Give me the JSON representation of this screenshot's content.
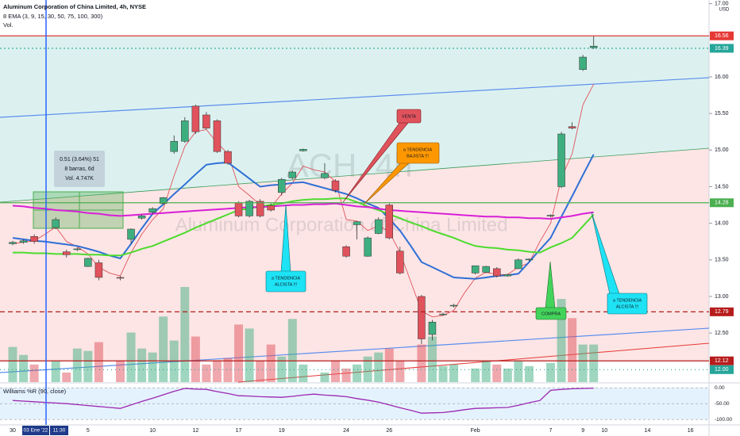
{
  "chart_data": {
    "type": "candlestick",
    "title": "Aluminum Corporation of China Limited, 4h, NYSE",
    "indicator_label": "8 EMA (3, 9, 15, 30, 50, 75, 100, 300)",
    "volume_label": "Vol.",
    "currency": "USD",
    "watermark": [
      "ACH, 4h",
      "Aluminum Corporation of China Limited"
    ],
    "up_color": "#3fae7f",
    "down_color": "#e0525c",
    "categories": [
      "30",
      null,
      null,
      null,
      null,
      null,
      null,
      "5",
      null,
      null,
      null,
      null,
      null,
      "10",
      null,
      null,
      null,
      "12",
      null,
      null,
      null,
      "17",
      null,
      null,
      null,
      "19",
      null,
      null,
      null,
      null,
      null,
      "24",
      null,
      null,
      null,
      "26",
      null,
      null,
      null,
      null,
      null,
      null,
      null,
      "Feb",
      null,
      null,
      null,
      null,
      null,
      null,
      "7",
      null,
      null,
      "9",
      null,
      "10",
      null,
      null,
      null,
      "14",
      null,
      null,
      null,
      "16",
      null
    ],
    "open": [
      13.72,
      13.74,
      13.82,
      null,
      13.94,
      13.61,
      13.64,
      13.41,
      13.46,
      null,
      13.26,
      13.78,
      14.07,
      14.15,
      14.27,
      14.98,
      15.12,
      15.6,
      15.48,
      15.4,
      14.98,
      14.28,
      14.1,
      14.3,
      14.24,
      14.42,
      14.62,
      14.99,
      null,
      14.62,
      14.58,
      13.68,
      13.98,
      13.55,
      13.86,
      14.25,
      13.62,
      null,
      13.0,
      12.48,
      12.75,
      12.87,
      null,
      13.32,
      13.33,
      13.38,
      13.28,
      13.38,
      13.5,
      null,
      14.1,
      14.5,
      15.32,
      16.1,
      16.4,
      null,
      null,
      null,
      null,
      null,
      null,
      null,
      null,
      null,
      null
    ],
    "high": [
      13.76,
      13.78,
      13.85,
      null,
      14.08,
      13.64,
      13.67,
      13.53,
      13.5,
      null,
      13.28,
      13.93,
      14.12,
      14.22,
      14.36,
      15.2,
      15.45,
      15.62,
      15.52,
      15.42,
      15.0,
      14.3,
      14.32,
      14.33,
      14.27,
      14.62,
      14.72,
      15.02,
      null,
      14.82,
      14.6,
      13.7,
      14.03,
      13.82,
      14.08,
      14.27,
      13.68,
      null,
      13.02,
      12.68,
      12.78,
      12.9,
      null,
      13.42,
      13.42,
      13.4,
      13.31,
      13.52,
      13.52,
      null,
      14.12,
      15.25,
      15.38,
      16.3,
      16.56,
      null,
      null,
      null,
      null,
      null,
      null,
      null,
      null,
      null,
      null
    ],
    "low": [
      13.7,
      13.72,
      13.72,
      null,
      13.92,
      13.53,
      13.62,
      13.4,
      13.22,
      null,
      13.22,
      13.72,
      14.05,
      14.12,
      14.25,
      14.95,
      15.1,
      15.22,
      15.28,
      14.96,
      14.8,
      14.08,
      14.08,
      14.08,
      14.16,
      14.38,
      14.6,
      14.98,
      null,
      14.6,
      14.42,
      13.53,
      13.78,
      13.54,
      13.85,
      13.78,
      13.3,
      null,
      12.35,
      12.4,
      12.74,
      12.85,
      null,
      13.3,
      13.32,
      13.26,
      13.27,
      13.37,
      13.48,
      null,
      14.08,
      14.48,
      15.28,
      16.08,
      16.38,
      null,
      null,
      null,
      null,
      null,
      null,
      null,
      null,
      null,
      null
    ],
    "close": [
      13.74,
      13.76,
      13.75,
      null,
      14.05,
      13.57,
      13.65,
      13.52,
      13.26,
      null,
      13.25,
      13.92,
      14.1,
      14.2,
      14.35,
      15.12,
      15.4,
      15.25,
      15.3,
      14.98,
      14.82,
      14.1,
      14.3,
      14.1,
      14.18,
      14.6,
      14.7,
      15.01,
      null,
      14.68,
      14.45,
      13.55,
      14.02,
      13.8,
      14.05,
      13.8,
      13.32,
      null,
      12.42,
      12.65,
      12.76,
      12.88,
      null,
      13.42,
      13.41,
      13.28,
      13.3,
      13.5,
      13.51,
      null,
      14.11,
      15.22,
      15.3,
      16.27,
      16.42,
      null,
      null,
      null,
      null,
      null,
      null,
      null,
      null,
      null,
      null
    ],
    "volume": [
      4.4,
      3.4,
      2.2,
      null,
      2.7,
      1.2,
      4.2,
      3.9,
      5.0,
      null,
      2.7,
      6.2,
      4.2,
      3.7,
      8.2,
      5.2,
      11.9,
      5.7,
      2.2,
      2.7,
      3.0,
      7.2,
      6.7,
      2.7,
      4.7,
      3.2,
      7.9,
      2.2,
      null,
      1.2,
      2.7,
      1.7,
      2.2,
      3.2,
      3.7,
      4.2,
      2.7,
      null,
      4.7,
      5.7,
      2.0,
      2.2,
      null,
      1.7,
      2.7,
      2.2,
      1.7,
      2.7,
      2.0,
      null,
      2.4,
      10.4,
      8.0,
      4.7,
      4.7,
      null,
      null,
      null,
      null,
      null,
      null,
      null,
      null,
      null,
      null
    ],
    "ema_lines": [
      {
        "color": "#e0525c",
        "values": [
          13.72,
          13.74,
          13.76,
          13.85,
          13.95,
          13.75,
          13.68,
          13.58,
          13.4,
          13.32,
          13.28,
          13.6,
          13.85,
          14.05,
          14.2,
          14.65,
          15.05,
          15.25,
          15.28,
          15.1,
          14.95,
          14.5,
          14.38,
          14.25,
          14.22,
          14.4,
          14.55,
          14.78,
          14.73,
          14.7,
          14.57,
          14.05,
          14.03,
          13.9,
          13.97,
          13.88,
          13.6,
          13.2,
          12.8,
          12.72,
          12.74,
          12.81,
          13.05,
          13.25,
          13.33,
          13.3,
          13.3,
          13.4,
          13.46,
          13.75,
          14.0,
          14.62,
          14.95,
          15.62,
          15.9,
          null,
          null,
          null,
          null,
          null,
          null,
          null,
          null,
          null,
          null
        ]
      },
      {
        "color": "#2f6fd6",
        "values": [
          13.8,
          13.78,
          13.76,
          13.75,
          13.73,
          13.71,
          13.69,
          13.65,
          13.61,
          13.56,
          13.52,
          13.72,
          13.93,
          14.13,
          14.26,
          14.4,
          14.53,
          14.67,
          14.8,
          14.82,
          14.83,
          14.72,
          14.61,
          14.5,
          14.52,
          14.53,
          14.55,
          14.56,
          14.52,
          14.48,
          14.44,
          14.4,
          14.34,
          14.27,
          14.21,
          14.06,
          13.9,
          13.69,
          13.47,
          13.4,
          13.33,
          13.26,
          13.25,
          13.24,
          13.26,
          13.28,
          13.29,
          13.31,
          13.47,
          13.64,
          13.8,
          14.09,
          14.37,
          14.66,
          14.94,
          null,
          null,
          null,
          null,
          null,
          null,
          null,
          null,
          null,
          null
        ]
      },
      {
        "color": "#4cdb2e",
        "values": [
          13.6,
          13.6,
          13.59,
          13.59,
          13.58,
          13.58,
          13.58,
          13.57,
          13.57,
          13.56,
          13.56,
          13.6,
          13.65,
          13.69,
          13.75,
          13.81,
          13.87,
          13.94,
          14.0,
          14.06,
          14.12,
          14.18,
          14.2,
          14.23,
          14.25,
          14.27,
          14.3,
          14.32,
          14.33,
          14.33,
          14.34,
          14.34,
          14.29,
          14.23,
          14.18,
          14.12,
          14.07,
          14.01,
          13.96,
          13.9,
          13.85,
          13.8,
          13.74,
          13.69,
          13.67,
          13.66,
          13.64,
          13.63,
          13.61,
          13.6,
          13.67,
          13.73,
          13.8,
          13.96,
          14.12,
          null,
          null,
          null,
          null,
          null,
          null,
          null,
          null,
          null,
          null
        ]
      },
      {
        "color": "#d81fd8",
        "values": [
          14.24,
          14.23,
          14.21,
          14.2,
          14.18,
          14.17,
          14.16,
          14.14,
          14.13,
          14.11,
          14.1,
          14.11,
          14.12,
          14.13,
          14.14,
          14.15,
          14.16,
          14.17,
          14.18,
          14.19,
          14.2,
          14.21,
          14.22,
          14.22,
          14.23,
          14.24,
          14.25,
          14.25,
          14.26,
          14.26,
          14.27,
          14.25,
          14.23,
          14.22,
          14.2,
          14.18,
          14.17,
          14.16,
          14.15,
          14.14,
          14.13,
          14.12,
          14.11,
          14.1,
          14.09,
          14.09,
          14.08,
          14.08,
          14.07,
          14.07,
          14.06,
          14.08,
          14.1,
          14.13,
          14.15,
          null,
          null,
          null,
          null,
          null,
          null,
          null,
          null,
          null,
          null
        ]
      }
    ],
    "ylim": [
      11.83,
      17.05
    ],
    "yticks": [
      {
        "value": 17,
        "label": "17.00"
      },
      {
        "value": 16,
        "label": "16.00"
      },
      {
        "value": 15.5,
        "label": "15.50"
      },
      {
        "value": 15,
        "label": "15.00"
      },
      {
        "value": 14.5,
        "label": "14.50"
      },
      {
        "value": 14,
        "label": "14.00"
      },
      {
        "value": 13.5,
        "label": "13.50"
      },
      {
        "value": 13,
        "label": "13.00"
      },
      {
        "value": 12.5,
        "label": "12.50"
      }
    ],
    "grid": false,
    "levels": [
      {
        "value": 16.56,
        "color": "#e53935",
        "dash": "none"
      },
      {
        "value": 16.39,
        "color": "#26a69a",
        "dash": "2,3"
      },
      {
        "value": 14.28,
        "color": "#4caf50",
        "dash": "none"
      },
      {
        "value": 12.79,
        "color": "#b71c1c",
        "dash": "6,4"
      },
      {
        "value": 12.12,
        "color": "#b71c1c",
        "dash": "none"
      },
      {
        "value": 12,
        "label": "12.00",
        "color": "#26a69a",
        "dash": "1,4"
      }
    ],
    "crosshair_labels": [
      "03 Ene '22",
      "11:30"
    ],
    "annotations": {
      "venta": [
        "VENTA"
      ],
      "bajista": [
        "a TENDENCIA",
        "BAJISTA !!!"
      ],
      "alcista_1": [
        "a TENDENCIA",
        "ALCISTA !!!"
      ],
      "compra": [
        "COMPRA"
      ],
      "alcista_2": [
        "a TENDENCIA",
        "ALCISTA !!!"
      ]
    },
    "measure": [
      "0.51 (3.64%) 51",
      "8 barras, 6d",
      "Vol. 4.747K"
    ],
    "williams": {
      "title": "Williams %R (90, close)",
      "color": "#9c27b0",
      "ylim": [
        -117,
        13
      ],
      "yticks": [
        {
          "value": 0,
          "label": "0.00"
        },
        {
          "value": -50,
          "label": "-50.00"
        },
        {
          "value": -100,
          "label": "-100.00"
        }
      ],
      "values": [
        -40,
        -42,
        -44,
        -46,
        -48,
        -50,
        -53,
        -56,
        -59,
        -62,
        -65,
        -54,
        -43,
        -33,
        -22,
        -11,
        -2,
        -4,
        -5,
        -12,
        -18,
        -25,
        -26,
        -28,
        -29,
        -30,
        -27,
        -23,
        -20,
        -23,
        -25,
        -28,
        -34,
        -39,
        -45,
        -54,
        -63,
        -71,
        -80,
        -79,
        -78,
        -74,
        -69,
        -65,
        -64,
        -63,
        -62,
        -55,
        -47,
        -40,
        -8,
        -5,
        -3,
        -2,
        -1,
        null,
        null,
        null,
        null,
        null,
        null,
        null,
        null,
        null,
        null
      ]
    }
  }
}
